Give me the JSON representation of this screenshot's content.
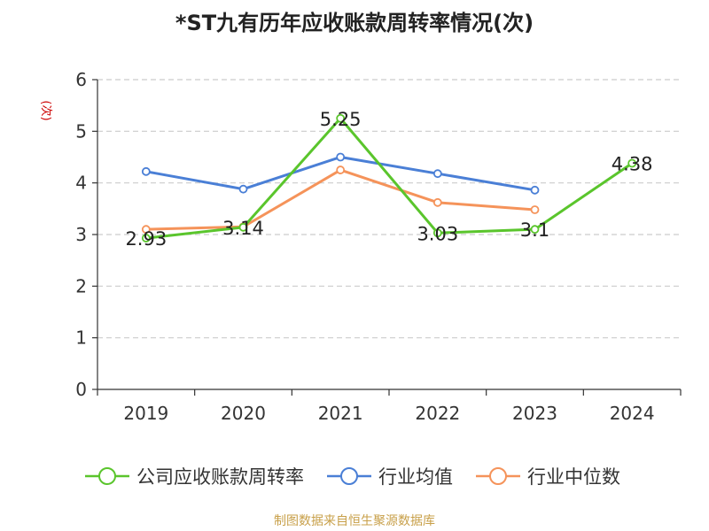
{
  "source_note": "制图数据来自恒生聚源数据库",
  "chart_data": {
    "type": "line",
    "title": "*ST九有历年应收账款周转率情况(次)",
    "ylabel": "(次)",
    "xlabel": "",
    "categories": [
      "2019",
      "2020",
      "2021",
      "2022",
      "2023",
      "2024"
    ],
    "ylim": [
      0,
      6
    ],
    "yticks": [
      0,
      1,
      2,
      3,
      4,
      5,
      6
    ],
    "grid": true,
    "legend_position": "bottom",
    "series": [
      {
        "name": "公司应收账款周转率",
        "color": "#5ac52c",
        "values": [
          2.93,
          3.14,
          5.25,
          3.03,
          3.1,
          4.38
        ],
        "labels": [
          "2.93",
          "3.14",
          "5.25",
          "3.03",
          "3.1",
          "4.38"
        ]
      },
      {
        "name": "行业均值",
        "color": "#4a7fd6",
        "values": [
          4.22,
          3.88,
          4.5,
          4.18,
          3.86,
          null
        ]
      },
      {
        "name": "行业中位数",
        "color": "#f5935a",
        "values": [
          3.1,
          3.15,
          4.25,
          3.62,
          3.48,
          null
        ]
      }
    ]
  }
}
